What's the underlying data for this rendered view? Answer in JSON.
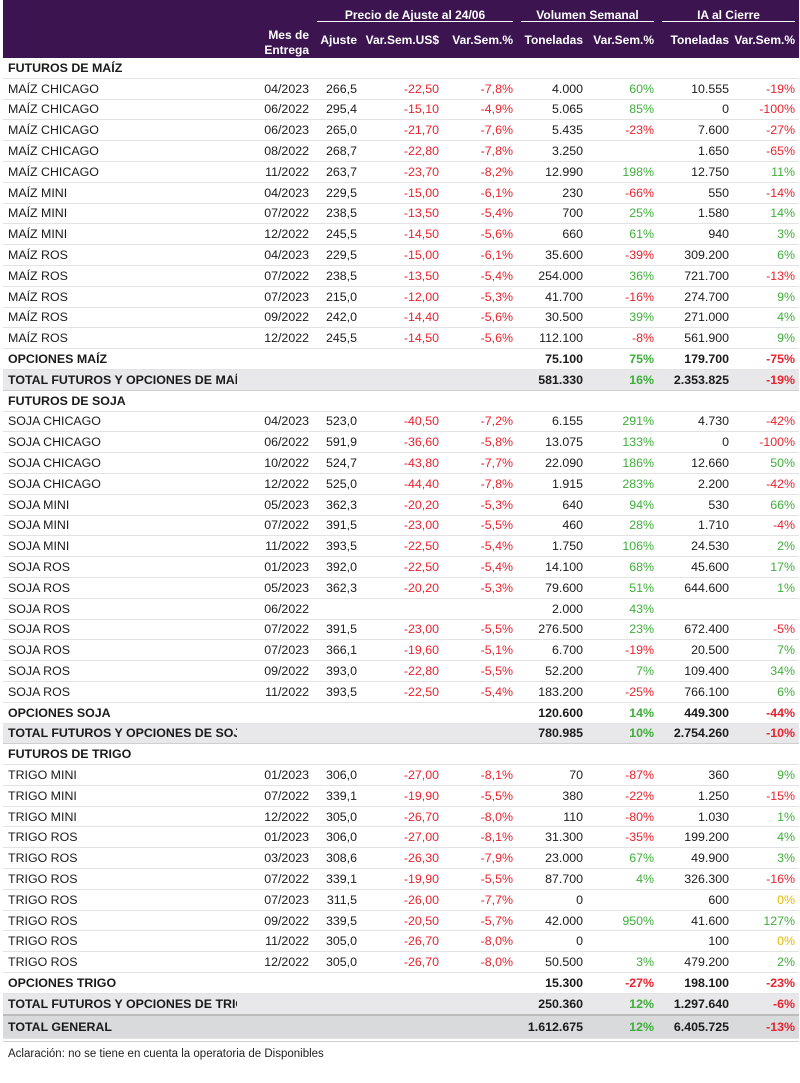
{
  "header": {
    "mes_entrega": "Mes de Entrega",
    "precio_group": "Precio de Ajuste al 24/06",
    "volumen_group": "Volumen Semanal",
    "ia_group": "IA al Cierre",
    "col_ajuste": "Ajuste",
    "col_varsem_usd": "Var.Sem.US$",
    "col_varsem_pct": "Var.Sem.%",
    "col_vol_ton": "Toneladas",
    "col_vol_var": "Var.Sem.%",
    "col_ia_ton": "Toneladas",
    "col_ia_var": "Var.Sem.%"
  },
  "rows": [
    {
      "kind": "section",
      "name": "FUTUROS DE MAÍZ"
    },
    {
      "kind": "data",
      "name": "MAÍZ CHICAGO",
      "mes": "04/2023",
      "ajuste": "266,5",
      "var_usd": "-22,50",
      "var_pct": "-7,8%",
      "vol": "4.000",
      "vol_var": "60%",
      "ia": "10.555",
      "ia_var": "-19%"
    },
    {
      "kind": "data",
      "name": "MAÍZ CHICAGO",
      "mes": "06/2022",
      "ajuste": "295,4",
      "var_usd": "-15,10",
      "var_pct": "-4,9%",
      "vol": "5.065",
      "vol_var": "85%",
      "ia": "0",
      "ia_var": "-100%"
    },
    {
      "kind": "data",
      "name": "MAÍZ CHICAGO",
      "mes": "06/2023",
      "ajuste": "265,0",
      "var_usd": "-21,70",
      "var_pct": "-7,6%",
      "vol": "5.435",
      "vol_var": "-23%",
      "ia": "7.600",
      "ia_var": "-27%"
    },
    {
      "kind": "data",
      "name": "MAÍZ CHICAGO",
      "mes": "08/2022",
      "ajuste": "268,7",
      "var_usd": "-22,80",
      "var_pct": "-7,8%",
      "vol": "3.250",
      "vol_var": "",
      "ia": "1.650",
      "ia_var": "-65%"
    },
    {
      "kind": "data",
      "name": "MAÍZ CHICAGO",
      "mes": "11/2022",
      "ajuste": "263,7",
      "var_usd": "-23,70",
      "var_pct": "-8,2%",
      "vol": "12.990",
      "vol_var": "198%",
      "ia": "12.750",
      "ia_var": "11%"
    },
    {
      "kind": "data",
      "name": "MAÍZ MINI",
      "mes": "04/2023",
      "ajuste": "229,5",
      "var_usd": "-15,00",
      "var_pct": "-6,1%",
      "vol": "230",
      "vol_var": "-66%",
      "ia": "550",
      "ia_var": "-14%"
    },
    {
      "kind": "data",
      "name": "MAÍZ MINI",
      "mes": "07/2022",
      "ajuste": "238,5",
      "var_usd": "-13,50",
      "var_pct": "-5,4%",
      "vol": "700",
      "vol_var": "25%",
      "ia": "1.580",
      "ia_var": "14%"
    },
    {
      "kind": "data",
      "name": "MAÍZ MINI",
      "mes": "12/2022",
      "ajuste": "245,5",
      "var_usd": "-14,50",
      "var_pct": "-5,6%",
      "vol": "660",
      "vol_var": "61%",
      "ia": "940",
      "ia_var": "3%"
    },
    {
      "kind": "data",
      "name": "MAÍZ ROS",
      "mes": "04/2023",
      "ajuste": "229,5",
      "var_usd": "-15,00",
      "var_pct": "-6,1%",
      "vol": "35.600",
      "vol_var": "-39%",
      "ia": "309.200",
      "ia_var": "6%"
    },
    {
      "kind": "data",
      "name": "MAÍZ ROS",
      "mes": "07/2022",
      "ajuste": "238,5",
      "var_usd": "-13,50",
      "var_pct": "-5,4%",
      "vol": "254.000",
      "vol_var": "36%",
      "ia": "721.700",
      "ia_var": "-13%"
    },
    {
      "kind": "data",
      "name": "MAÍZ ROS",
      "mes": "07/2023",
      "ajuste": "215,0",
      "var_usd": "-12,00",
      "var_pct": "-5,3%",
      "vol": "41.700",
      "vol_var": "-16%",
      "ia": "274.700",
      "ia_var": "9%"
    },
    {
      "kind": "data",
      "name": "MAÍZ ROS",
      "mes": "09/2022",
      "ajuste": "242,0",
      "var_usd": "-14,40",
      "var_pct": "-5,6%",
      "vol": "30.500",
      "vol_var": "39%",
      "ia": "271.000",
      "ia_var": "4%"
    },
    {
      "kind": "data",
      "name": "MAÍZ ROS",
      "mes": "12/2022",
      "ajuste": "245,5",
      "var_usd": "-14,50",
      "var_pct": "-5,6%",
      "vol": "112.100",
      "vol_var": "-8%",
      "ia": "561.900",
      "ia_var": "9%"
    },
    {
      "kind": "opt",
      "name": "OPCIONES MAÍZ",
      "vol": "75.100",
      "vol_var": "75%",
      "ia": "179.700",
      "ia_var": "-75%"
    },
    {
      "kind": "total",
      "name": "TOTAL FUTUROS Y OPCIONES DE MAÍZ",
      "vol": "581.330",
      "vol_var": "16%",
      "ia": "2.353.825",
      "ia_var": "-19%"
    },
    {
      "kind": "section",
      "name": "FUTUROS DE SOJA"
    },
    {
      "kind": "data",
      "name": "SOJA CHICAGO",
      "mes": "04/2023",
      "ajuste": "523,0",
      "var_usd": "-40,50",
      "var_pct": "-7,2%",
      "vol": "6.155",
      "vol_var": "291%",
      "ia": "4.730",
      "ia_var": "-42%"
    },
    {
      "kind": "data",
      "name": "SOJA CHICAGO",
      "mes": "06/2022",
      "ajuste": "591,9",
      "var_usd": "-36,60",
      "var_pct": "-5,8%",
      "vol": "13.075",
      "vol_var": "133%",
      "ia": "0",
      "ia_var": "-100%"
    },
    {
      "kind": "data",
      "name": "SOJA CHICAGO",
      "mes": "10/2022",
      "ajuste": "524,7",
      "var_usd": "-43,80",
      "var_pct": "-7,7%",
      "vol": "22.090",
      "vol_var": "186%",
      "ia": "12.660",
      "ia_var": "50%"
    },
    {
      "kind": "data",
      "name": "SOJA CHICAGO",
      "mes": "12/2022",
      "ajuste": "525,0",
      "var_usd": "-44,40",
      "var_pct": "-7,8%",
      "vol": "1.915",
      "vol_var": "283%",
      "ia": "2.200",
      "ia_var": "-42%"
    },
    {
      "kind": "data",
      "name": "SOJA MINI",
      "mes": "05/2023",
      "ajuste": "362,3",
      "var_usd": "-20,20",
      "var_pct": "-5,3%",
      "vol": "640",
      "vol_var": "94%",
      "ia": "530",
      "ia_var": "66%"
    },
    {
      "kind": "data",
      "name": "SOJA MINI",
      "mes": "07/2022",
      "ajuste": "391,5",
      "var_usd": "-23,00",
      "var_pct": "-5,5%",
      "vol": "460",
      "vol_var": "28%",
      "ia": "1.710",
      "ia_var": "-4%"
    },
    {
      "kind": "data",
      "name": "SOJA MINI",
      "mes": "11/2022",
      "ajuste": "393,5",
      "var_usd": "-22,50",
      "var_pct": "-5,4%",
      "vol": "1.750",
      "vol_var": "106%",
      "ia": "24.530",
      "ia_var": "2%"
    },
    {
      "kind": "data",
      "name": "SOJA ROS",
      "mes": "01/2023",
      "ajuste": "392,0",
      "var_usd": "-22,50",
      "var_pct": "-5,4%",
      "vol": "14.100",
      "vol_var": "68%",
      "ia": "45.600",
      "ia_var": "17%"
    },
    {
      "kind": "data",
      "name": "SOJA ROS",
      "mes": "05/2023",
      "ajuste": "362,3",
      "var_usd": "-20,20",
      "var_pct": "-5,3%",
      "vol": "79.600",
      "vol_var": "51%",
      "ia": "644.600",
      "ia_var": "1%"
    },
    {
      "kind": "data",
      "name": "SOJA ROS",
      "mes": "06/2022",
      "ajuste": "",
      "var_usd": "",
      "var_pct": "",
      "vol": "2.000",
      "vol_var": "43%",
      "ia": "",
      "ia_var": ""
    },
    {
      "kind": "data",
      "name": "SOJA ROS",
      "mes": "07/2022",
      "ajuste": "391,5",
      "var_usd": "-23,00",
      "var_pct": "-5,5%",
      "vol": "276.500",
      "vol_var": "23%",
      "ia": "672.400",
      "ia_var": "-5%"
    },
    {
      "kind": "data",
      "name": "SOJA ROS",
      "mes": "07/2023",
      "ajuste": "366,1",
      "var_usd": "-19,60",
      "var_pct": "-5,1%",
      "vol": "6.700",
      "vol_var": "-19%",
      "ia": "20.500",
      "ia_var": "7%"
    },
    {
      "kind": "data",
      "name": "SOJA ROS",
      "mes": "09/2022",
      "ajuste": "393,0",
      "var_usd": "-22,80",
      "var_pct": "-5,5%",
      "vol": "52.200",
      "vol_var": "7%",
      "ia": "109.400",
      "ia_var": "34%"
    },
    {
      "kind": "data",
      "name": "SOJA ROS",
      "mes": "11/2022",
      "ajuste": "393,5",
      "var_usd": "-22,50",
      "var_pct": "-5,4%",
      "vol": "183.200",
      "vol_var": "-25%",
      "ia": "766.100",
      "ia_var": "6%"
    },
    {
      "kind": "opt",
      "name": "OPCIONES SOJA",
      "vol": "120.600",
      "vol_var": "14%",
      "ia": "449.300",
      "ia_var": "-44%"
    },
    {
      "kind": "total",
      "name": "TOTAL FUTUROS Y OPCIONES DE SOJA",
      "vol": "780.985",
      "vol_var": "10%",
      "ia": "2.754.260",
      "ia_var": "-10%"
    },
    {
      "kind": "section",
      "name": "FUTUROS DE TRIGO"
    },
    {
      "kind": "data",
      "name": "TRIGO MINI",
      "mes": "01/2023",
      "ajuste": "306,0",
      "var_usd": "-27,00",
      "var_pct": "-8,1%",
      "vol": "70",
      "vol_var": "-87%",
      "ia": "360",
      "ia_var": "9%"
    },
    {
      "kind": "data",
      "name": "TRIGO MINI",
      "mes": "07/2022",
      "ajuste": "339,1",
      "var_usd": "-19,90",
      "var_pct": "-5,5%",
      "vol": "380",
      "vol_var": "-22%",
      "ia": "1.250",
      "ia_var": "-15%"
    },
    {
      "kind": "data",
      "name": "TRIGO MINI",
      "mes": "12/2022",
      "ajuste": "305,0",
      "var_usd": "-26,70",
      "var_pct": "-8,0%",
      "vol": "110",
      "vol_var": "-80%",
      "ia": "1.030",
      "ia_var": "1%"
    },
    {
      "kind": "data",
      "name": "TRIGO ROS",
      "mes": "01/2023",
      "ajuste": "306,0",
      "var_usd": "-27,00",
      "var_pct": "-8,1%",
      "vol": "31.300",
      "vol_var": "-35%",
      "ia": "199.200",
      "ia_var": "4%"
    },
    {
      "kind": "data",
      "name": "TRIGO ROS",
      "mes": "03/2023",
      "ajuste": "308,6",
      "var_usd": "-26,30",
      "var_pct": "-7,9%",
      "vol": "23.000",
      "vol_var": "67%",
      "ia": "49.900",
      "ia_var": "3%"
    },
    {
      "kind": "data",
      "name": "TRIGO ROS",
      "mes": "07/2022",
      "ajuste": "339,1",
      "var_usd": "-19,90",
      "var_pct": "-5,5%",
      "vol": "87.700",
      "vol_var": "4%",
      "ia": "326.300",
      "ia_var": "-16%"
    },
    {
      "kind": "data",
      "name": "TRIGO ROS",
      "mes": "07/2023",
      "ajuste": "311,5",
      "var_usd": "-26,00",
      "var_pct": "-7,7%",
      "vol": "0",
      "vol_var": "",
      "ia": "600",
      "ia_var": "0%"
    },
    {
      "kind": "data",
      "name": "TRIGO ROS",
      "mes": "09/2022",
      "ajuste": "339,5",
      "var_usd": "-20,50",
      "var_pct": "-5,7%",
      "vol": "42.000",
      "vol_var": "950%",
      "ia": "41.600",
      "ia_var": "127%"
    },
    {
      "kind": "data",
      "name": "TRIGO ROS",
      "mes": "11/2022",
      "ajuste": "305,0",
      "var_usd": "-26,70",
      "var_pct": "-8,0%",
      "vol": "0",
      "vol_var": "",
      "ia": "100",
      "ia_var": "0%"
    },
    {
      "kind": "data",
      "name": "TRIGO ROS",
      "mes": "12/2022",
      "ajuste": "305,0",
      "var_usd": "-26,70",
      "var_pct": "-8,0%",
      "vol": "50.500",
      "vol_var": "3%",
      "ia": "479.200",
      "ia_var": "2%"
    },
    {
      "kind": "opt",
      "name": "OPCIONES TRIGO",
      "vol": "15.300",
      "vol_var": "-27%",
      "ia": "198.100",
      "ia_var": "-23%"
    },
    {
      "kind": "total",
      "name": "TOTAL FUTUROS Y OPCIONES DE TRIGO",
      "vol": "250.360",
      "vol_var": "12%",
      "ia": "1.297.640",
      "ia_var": "-6%"
    },
    {
      "kind": "grand",
      "name": "TOTAL GENERAL",
      "vol": "1.612.675",
      "vol_var": "12%",
      "ia": "6.405.725",
      "ia_var": "-13%"
    }
  ],
  "note": "Aclaración: no se tiene en cuenta la operatoria de Disponibles",
  "colors": {
    "header_bg": "#3b1450",
    "negative": "#e8232e",
    "positive": "#3fae3a",
    "zero": "#e6b800",
    "total_bg": "#e8e8ea"
  }
}
